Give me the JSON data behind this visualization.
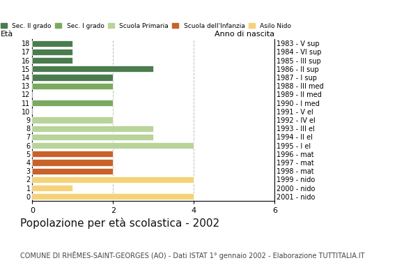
{
  "ages": [
    18,
    17,
    16,
    15,
    14,
    13,
    12,
    11,
    10,
    9,
    8,
    7,
    6,
    5,
    4,
    3,
    2,
    1,
    0
  ],
  "right_labels": [
    "1983 - V sup",
    "1984 - VI sup",
    "1985 - III sup",
    "1986 - II sup",
    "1987 - I sup",
    "1988 - III med",
    "1989 - II med",
    "1990 - I med",
    "1991 - V el",
    "1992 - IV el",
    "1993 - III el",
    "1994 - II el",
    "1995 - I el",
    "1996 - mat",
    "1997 - mat",
    "1998 - mat",
    "1999 - nido",
    "2000 - nido",
    "2001 - nido"
  ],
  "values": [
    1,
    1,
    1,
    3,
    2,
    2,
    0,
    2,
    0,
    2,
    3,
    3,
    4,
    2,
    2,
    2,
    4,
    1,
    4
  ],
  "colors": [
    "#4a7c4e",
    "#4a7c4e",
    "#4a7c4e",
    "#4a7c4e",
    "#4a7c4e",
    "#7aaa5e",
    "#7aaa5e",
    "#7aaa5e",
    "#b8d49a",
    "#b8d49a",
    "#b8d49a",
    "#b8d49a",
    "#b8d49a",
    "#c8622a",
    "#c8622a",
    "#c8622a",
    "#f5d27a",
    "#f5d27a",
    "#f5d27a"
  ],
  "legend_labels": [
    "Sec. II grado",
    "Sec. I grado",
    "Scuola Primaria",
    "Scuola dell'Infanzia",
    "Asilo Nido"
  ],
  "legend_colors": [
    "#4a7c4e",
    "#7aaa5e",
    "#b8d49a",
    "#c8622a",
    "#f5d27a"
  ],
  "title": "Popolazione per età scolastica - 2002",
  "subtitle": "COMUNE DI RHÊMES-SAINT-GEORGES (AO) - Dati ISTAT 1° gennaio 2002 - Elaborazione TUTTITALIA.IT",
  "label_left": "Età",
  "label_right": "Anno di nascita",
  "xlim": [
    0,
    6
  ],
  "xticks": [
    0,
    2,
    4,
    6
  ],
  "bar_height": 0.75,
  "background_color": "#ffffff",
  "grid_color": "#bbbbbb",
  "tick_fontsize": 7,
  "title_fontsize": 11,
  "subtitle_fontsize": 7
}
